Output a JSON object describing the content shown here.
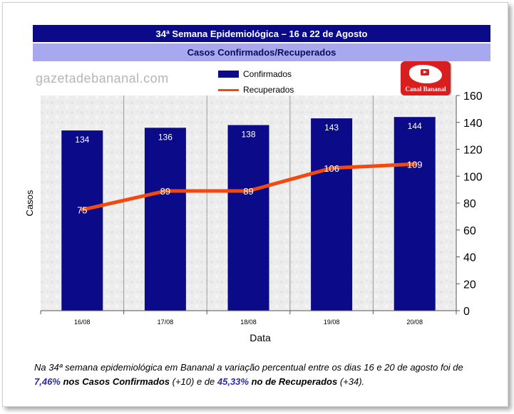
{
  "header": {
    "title": "34ª Semana Epidemiológica – 16 a 22 de Agosto",
    "subtitle": "Casos Confirmados/Recuperados"
  },
  "watermark": "gazetadebananal.com",
  "logo": {
    "text": "Canal Bananal"
  },
  "chart_data": {
    "type": "bar",
    "categories": [
      "16/08",
      "17/08",
      "18/08",
      "19/08",
      "20/08"
    ],
    "series": [
      {
        "name": "Confirmados",
        "type": "bar",
        "color": "#0b0b8a",
        "values": [
          134,
          136,
          138,
          143,
          144
        ]
      },
      {
        "name": "Recuperados",
        "type": "line",
        "color": "#f04a10",
        "values": [
          75,
          89,
          89,
          106,
          109
        ]
      }
    ],
    "xlabel": "Data",
    "ylabel": "Casos",
    "ylim": [
      0,
      160
    ],
    "yticks": [
      0,
      20,
      40,
      60,
      80,
      100,
      120,
      140,
      160
    ],
    "y_axis_side": "right",
    "grid": true,
    "legend": "top"
  },
  "caption": {
    "p1": "Na 34ª semana epidemiológica em Bananal  a variação percentual entre os dias 16 e 20 de agosto foi de ",
    "pct1": "7,46%",
    "b1": " nos Casos Confirmados",
    "p2": " (+10) e de ",
    "pct2": "45,33%",
    "b2": " no de Recuperados",
    "p3": " (+34)."
  }
}
